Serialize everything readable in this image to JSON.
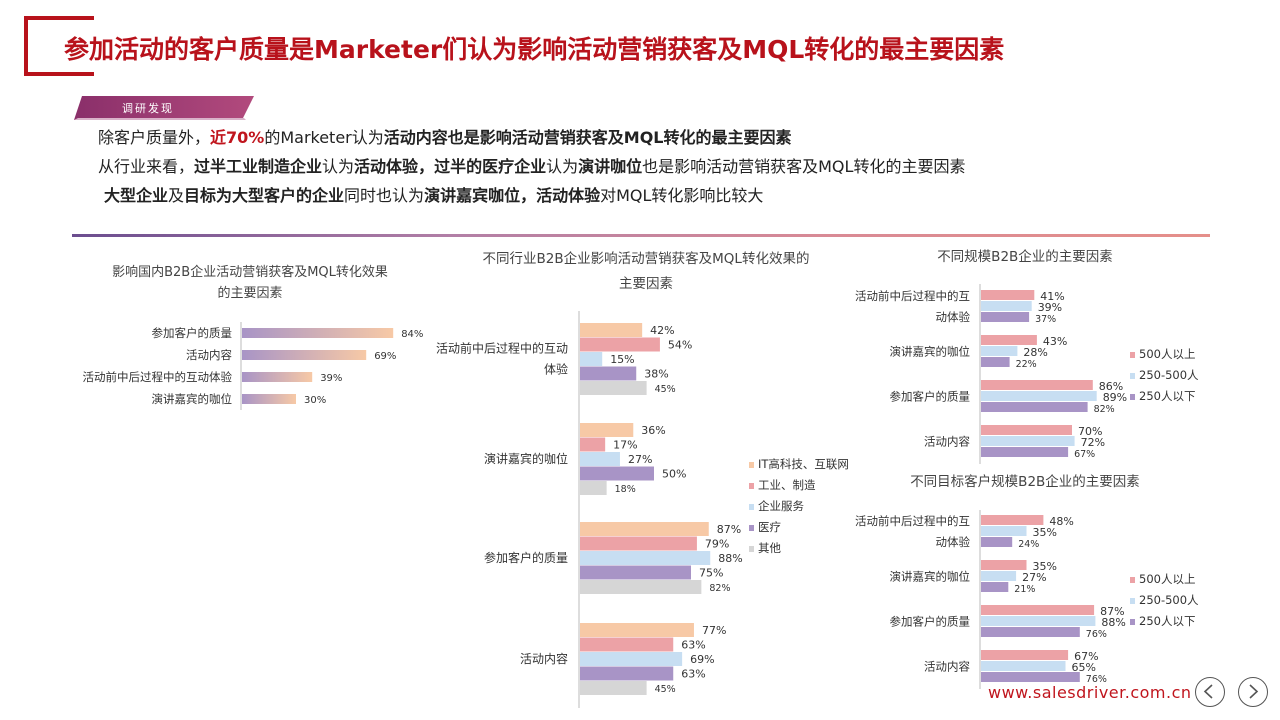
{
  "header": {
    "title": "参加活动的客户质量是Marketer们认为影响活动营销获客及MQL转化的最主要因素",
    "tag": "调研发现"
  },
  "findings": {
    "line1": {
      "p1": "除客户质量外，",
      "p2": "近70%",
      "p3": "的Marketer认为",
      "p4": "活动内容也是影响活动营销获客及MQL转化的最主要因素"
    },
    "line2": {
      "p1": "从行业来看，",
      "p2": "过半工业制造企业",
      "p3": "认为",
      "p4": "活动体验",
      "p5": "，",
      "p6": "过半的医疗企业",
      "p7": "认为",
      "p8": "演讲咖位",
      "p9": "也是影响活动营销获客及MQL转化的主要因素"
    },
    "line3": {
      "p1": "大型企业",
      "p2": "及",
      "p3": "目标为大型客户的企业",
      "p4": "同时也认为",
      "p5": "演讲嘉宾咖位，活动体验",
      "p6": "对MQL转化影响比较大"
    }
  },
  "footer": {
    "url": "www.salesdriver.com.cn"
  },
  "colors": {
    "accent": "#b8121b",
    "it": "#f7c9a6",
    "industrial": "#eca2a6",
    "service": "#c7def2",
    "medical": "#a894c6",
    "other": "#d6d6d6",
    "large": "#eca2a6",
    "mid": "#c7def2",
    "small": "#a894c6"
  },
  "chart_data": [
    {
      "type": "bar",
      "title": "影响国内B2B企业活动营销获客及MQL转化效果的主要因素",
      "title_lines": [
        "影响国内B2B企业活动营销获客及MQL转化效果",
        "的主要因素"
      ],
      "categories": [
        "参加客户的质量",
        "活动内容",
        "活动前中后过程中的互动体验",
        "演讲嘉宾的咖位"
      ],
      "values": [
        84,
        69,
        39,
        30
      ],
      "unit": "%"
    },
    {
      "type": "bar",
      "title": "不同行业B2B企业影响活动营销获客及MQL转化效果的主要因素",
      "title_lines": [
        "不同行业B2B企业影响活动营销获客及MQL转化效果的",
        "主要因素"
      ],
      "categories": [
        "活动前中后过程中的互动体验",
        "演讲嘉宾的咖位",
        "参加客户的质量",
        "活动内容"
      ],
      "category_lines": [
        [
          "活动前中后过程中的互动",
          "体验"
        ],
        [
          "演讲嘉宾的咖位"
        ],
        [
          "参加客户的质量"
        ],
        [
          "活动内容"
        ]
      ],
      "series": [
        {
          "name": "IT高科技、互联网",
          "values": [
            42,
            36,
            87,
            77
          ]
        },
        {
          "name": "工业、制造",
          "values": [
            54,
            17,
            79,
            63
          ]
        },
        {
          "name": "企业服务",
          "values": [
            15,
            27,
            88,
            69
          ]
        },
        {
          "name": "医疗",
          "values": [
            38,
            50,
            75,
            63
          ]
        },
        {
          "name": "其他",
          "values": [
            45,
            18,
            82,
            45
          ]
        }
      ],
      "unit": "%"
    },
    {
      "type": "bar",
      "title": "不同规模B2B企业的主要因素",
      "categories": [
        "活动前中后过程中的互动体验",
        "演讲嘉宾的咖位",
        "参加客户的质量",
        "活动内容"
      ],
      "category_lines": [
        [
          "活动前中后过程中的互",
          "动体验"
        ],
        [
          "演讲嘉宾的咖位"
        ],
        [
          "参加客户的质量"
        ],
        [
          "活动内容"
        ]
      ],
      "series": [
        {
          "name": "500人以上",
          "values": [
            41,
            43,
            86,
            70
          ]
        },
        {
          "name": "250-500人",
          "values": [
            39,
            28,
            89,
            72
          ]
        },
        {
          "name": "250人以下",
          "values": [
            37,
            22,
            82,
            67
          ]
        }
      ],
      "unit": "%"
    },
    {
      "type": "bar",
      "title": "不同目标客户规模B2B企业的主要因素",
      "categories": [
        "活动前中后过程中的互动体验",
        "演讲嘉宾的咖位",
        "参加客户的质量",
        "活动内容"
      ],
      "category_lines": [
        [
          "活动前中后过程中的互",
          "动体验"
        ],
        [
          "演讲嘉宾的咖位"
        ],
        [
          "参加客户的质量"
        ],
        [
          "活动内容"
        ]
      ],
      "series": [
        {
          "name": "500人以上",
          "values": [
            48,
            35,
            87,
            67
          ]
        },
        {
          "name": "250-500人",
          "values": [
            35,
            27,
            88,
            65
          ]
        },
        {
          "name": "250人以下",
          "values": [
            24,
            21,
            76,
            76
          ]
        }
      ],
      "unit": "%"
    }
  ]
}
